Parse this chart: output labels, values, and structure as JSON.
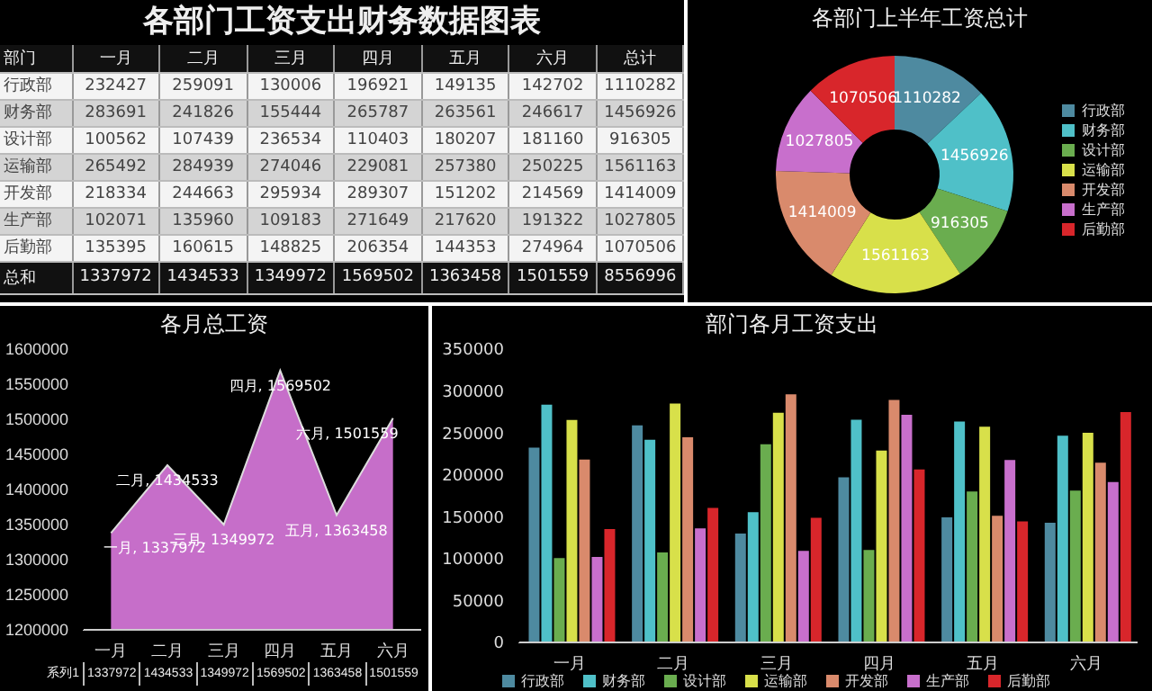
{
  "chart_data": [
    {
      "type": "heatmap",
      "data_labels": true,
      "title": "各部门工资支出财务数据图表",
      "ylabel": "部门",
      "categories": [
        "一月",
        "二月",
        "三月",
        "四月",
        "五月",
        "六月",
        "总计"
      ],
      "y_categories": [
        "行政部",
        "财务部",
        "设计部",
        "运输部",
        "开发部",
        "生产部",
        "后勤部",
        "总和"
      ],
      "cells": [
        [
          232427,
          259091,
          130006,
          196921,
          149135,
          142702,
          1110282
        ],
        [
          283691,
          241826,
          155444,
          265787,
          263561,
          246617,
          1456926
        ],
        [
          100562,
          107439,
          236534,
          110403,
          180207,
          181160,
          916305
        ],
        [
          265492,
          284939,
          274046,
          229081,
          257380,
          250225,
          1561163
        ],
        [
          218334,
          244663,
          295934,
          289307,
          151202,
          214569,
          1414009
        ],
        [
          102071,
          135960,
          109183,
          271649,
          217620,
          191322,
          1027805
        ],
        [
          135395,
          160615,
          148825,
          206354,
          144353,
          274964,
          1070506
        ],
        [
          1337972,
          1434533,
          1349972,
          1569502,
          1363458,
          1501559,
          8556996
        ]
      ]
    },
    {
      "type": "donut",
      "title": "各部门上半年工资总计",
      "categories": [
        "行政部",
        "财务部",
        "设计部",
        "运输部",
        "开发部",
        "生产部",
        "后勤部"
      ],
      "values": [
        1110282,
        1456926,
        916305,
        1561163,
        1414009,
        1027805,
        1070506
      ],
      "colors": [
        "#4e8aa0",
        "#4fc0c8",
        "#6aad4f",
        "#d8e04a",
        "#d98a6c",
        "#c86fcc",
        "#d8262b"
      ],
      "data_labels": true,
      "legend": "right"
    },
    {
      "type": "area",
      "title": "各月总工资",
      "categories": [
        "一月",
        "二月",
        "三月",
        "四月",
        "五月",
        "六月"
      ],
      "series": [
        {
          "name": "系列1",
          "color": "#c66ec9",
          "values": [
            1337972,
            1434533,
            1349972,
            1569502,
            1363458,
            1501559
          ],
          "value_labels": [
            "一月, 1337972",
            "二月, 1434533",
            "三月, 1349972",
            "四月, 1569502",
            "五月, 1363458",
            "六月, 1501559"
          ]
        }
      ],
      "ylim": [
        1200000,
        1600000
      ],
      "yticks": [
        1200000,
        1250000,
        1300000,
        1350000,
        1400000,
        1450000,
        1500000,
        1550000,
        1600000
      ],
      "annotations": [
        "1337972",
        "1434533",
        "1349972",
        "1569502",
        "1363458",
        "1501559"
      ]
    },
    {
      "type": "bar",
      "title": "部门各月工资支出",
      "categories": [
        "一月",
        "二月",
        "三月",
        "四月",
        "五月",
        "六月"
      ],
      "series": [
        {
          "name": "行政部",
          "color": "#4e8aa0",
          "values": [
            232427,
            259091,
            130006,
            196921,
            149135,
            142702
          ]
        },
        {
          "name": "财务部",
          "color": "#4fc0c8",
          "values": [
            283691,
            241826,
            155444,
            265787,
            263561,
            246617
          ]
        },
        {
          "name": "设计部",
          "color": "#6aad4f",
          "values": [
            100562,
            107439,
            236534,
            110403,
            180207,
            181160
          ]
        },
        {
          "name": "运输部",
          "color": "#d8e04a",
          "values": [
            265492,
            284939,
            274046,
            229081,
            257380,
            250225
          ]
        },
        {
          "name": "开发部",
          "color": "#d98a6c",
          "values": [
            218334,
            244663,
            295934,
            289307,
            151202,
            214569
          ]
        },
        {
          "name": "生产部",
          "color": "#c86fcc",
          "values": [
            102071,
            135960,
            109183,
            271649,
            217620,
            191322
          ]
        },
        {
          "name": "后勤部",
          "color": "#d8262b",
          "values": [
            135395,
            160615,
            148825,
            206354,
            144353,
            274964
          ]
        }
      ],
      "ylim": [
        0,
        350000
      ],
      "yticks": [
        0,
        50000,
        100000,
        150000,
        200000,
        250000,
        300000,
        350000
      ],
      "legend": "bottom"
    }
  ]
}
